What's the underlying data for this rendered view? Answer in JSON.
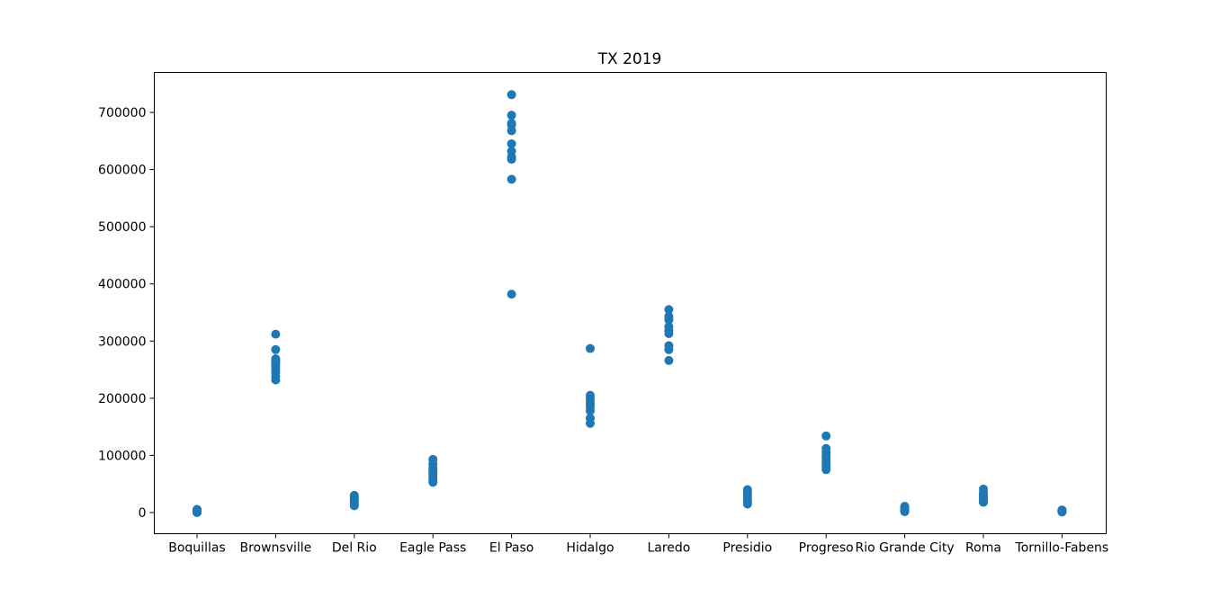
{
  "chart_data": {
    "type": "scatter",
    "title": "TX 2019",
    "xlabel": "",
    "ylabel": "",
    "categories": [
      "Boquillas",
      "Brownsville",
      "Del Rio",
      "Eagle Pass",
      "El Paso",
      "Hidalgo",
      "Laredo",
      "Presidio",
      "Progreso",
      "Rio Grande City",
      "Roma",
      "Tornillo-Fabens"
    ],
    "yticks": [
      0,
      100000,
      200000,
      300000,
      400000,
      500000,
      600000,
      700000
    ],
    "ylim": [
      -37000,
      770000
    ],
    "grid": false,
    "legend": "none",
    "marker_color": "#1f77b4",
    "series": [
      {
        "values": {
          "Boquillas": [
            0,
            500,
            1000,
            1500,
            2000,
            2500,
            3000,
            3500,
            4000,
            4500,
            5000,
            5500
          ],
          "Brownsville": [
            232000,
            238000,
            245000,
            250000,
            255000,
            260000,
            263000,
            266000,
            269000,
            285000,
            312000
          ],
          "Del Rio": [
            12000,
            15000,
            17000,
            20000,
            22000,
            25000,
            28000,
            30000
          ],
          "Eagle Pass": [
            53000,
            57000,
            62000,
            67000,
            70000,
            74000,
            78000,
            85000,
            93000
          ],
          "El Paso": [
            382000,
            583000,
            618000,
            622000,
            632000,
            645000,
            668000,
            678000,
            681000,
            695000,
            731000
          ],
          "Hidalgo": [
            156000,
            165000,
            178000,
            185000,
            190000,
            195000,
            200000,
            205000,
            287000
          ],
          "Laredo": [
            266000,
            285000,
            292000,
            313000,
            318000,
            325000,
            337000,
            343000,
            355000
          ],
          "Presidio": [
            15000,
            18000,
            20000,
            25000,
            30000,
            35000,
            40000
          ],
          "Progreso": [
            75000,
            80000,
            85000,
            90000,
            95000,
            100000,
            106000,
            112000,
            134000
          ],
          "Rio Grande City": [
            1500,
            3000,
            5000,
            7000,
            9000,
            11000
          ],
          "Roma": [
            18000,
            20000,
            22000,
            25000,
            28000,
            30000,
            34000,
            41000
          ],
          "Tornillo-Fabens": [
            1000,
            1500,
            2000,
            2500,
            3000,
            3500,
            4000,
            4500
          ]
        }
      }
    ]
  }
}
